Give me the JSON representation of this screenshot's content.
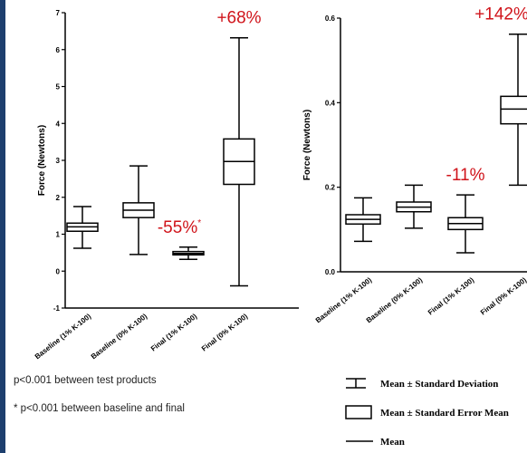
{
  "chart_data": [
    {
      "type": "box",
      "ylabel": "Force (Newtons)",
      "ylim": [
        -1,
        7
      ],
      "yticks": [
        "-1",
        "0",
        "1",
        "2",
        "3",
        "4",
        "5",
        "6",
        "7"
      ],
      "categories": [
        "Baseline (1% K-100)",
        "Baseline (0% K-100)",
        "Final (1% K-100)",
        "Final (0% K-100)"
      ],
      "boxes": [
        {
          "min": 0.62,
          "q1": 1.08,
          "median": 1.2,
          "q3": 1.3,
          "max": 1.75
        },
        {
          "min": 0.45,
          "q1": 1.45,
          "median": 1.65,
          "q3": 1.85,
          "max": 2.85
        },
        {
          "min": 0.32,
          "q1": 0.44,
          "median": 0.48,
          "q3": 0.53,
          "max": 0.65
        },
        {
          "min": -0.4,
          "q1": 2.35,
          "median": 2.97,
          "q3": 3.58,
          "max": 6.32
        }
      ],
      "annotations": [
        {
          "category": 2,
          "text": "-55%",
          "star": "*"
        },
        {
          "category": 3,
          "text": "+68%",
          "star": ""
        }
      ]
    },
    {
      "type": "box",
      "ylabel": "Force (Newtons)",
      "ylim": [
        0,
        0.6
      ],
      "yticks": [
        "0.0",
        "0.2",
        "0.4",
        "0.6"
      ],
      "categories": [
        "Baseline (1% K-100)",
        "Baseline (0% K-100)",
        "Final (1% K-100)",
        "Final (0% K-100)"
      ],
      "boxes": [
        {
          "min": 0.072,
          "q1": 0.113,
          "median": 0.124,
          "q3": 0.135,
          "max": 0.175
        },
        {
          "min": 0.103,
          "q1": 0.142,
          "median": 0.153,
          "q3": 0.165,
          "max": 0.205
        },
        {
          "min": 0.045,
          "q1": 0.1,
          "median": 0.114,
          "q3": 0.128,
          "max": 0.182
        },
        {
          "min": 0.205,
          "q1": 0.35,
          "median": 0.385,
          "q3": 0.415,
          "max": 0.562
        }
      ],
      "annotations": [
        {
          "category": 2,
          "text": "-11%",
          "star": ""
        },
        {
          "category": 3,
          "text": "+142%",
          "star": "*"
        }
      ]
    }
  ],
  "notes": {
    "between_products": "p<0.001 between test products",
    "baseline_final": "* p<0.001 between baseline and final"
  },
  "legend": [
    {
      "symbol": "whisker",
      "label": "Mean ± Standard Deviation"
    },
    {
      "symbol": "box",
      "label": "Mean ± Standard Error Mean"
    },
    {
      "symbol": "line",
      "label": "Mean"
    }
  ]
}
